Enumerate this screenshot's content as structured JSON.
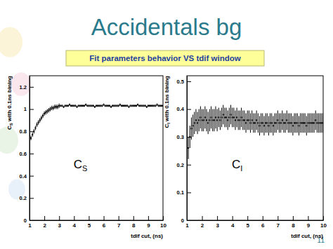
{
  "slide": {
    "title": "Accidentals bg",
    "subtitle": "Fit parameters behavior VS tdif window",
    "page_number": 11
  },
  "chart_data": [
    {
      "type": "scatter",
      "marker": "square",
      "color": "#000000",
      "x_label": "tdif cut, (ns)",
      "y_label": {
        "text": "C",
        "subscript": "S",
        "rest": " with 0.1ns bining"
      },
      "annotation": {
        "text": "C",
        "subscript": "S"
      },
      "xlim": [
        1,
        10
      ],
      "xticks": [
        1,
        2,
        3,
        4,
        5,
        6,
        7,
        8,
        9,
        10
      ],
      "ylim": [
        0,
        1.3
      ],
      "yticks": [
        0,
        0.2,
        0.4,
        0.6,
        0.8,
        1,
        1.2
      ],
      "x": [
        1,
        1.1,
        1.2,
        1.3,
        1.4,
        1.5,
        1.6,
        1.7,
        1.8,
        1.9,
        2,
        2.1,
        2.2,
        2.3,
        2.4,
        2.5,
        2.6,
        2.7,
        2.8,
        2.9,
        3,
        3.1,
        3.2,
        3.3,
        3.4,
        3.5,
        3.6,
        3.7,
        3.8,
        3.9,
        4,
        4.1,
        4.2,
        4.3,
        4.4,
        4.5,
        4.6,
        4.7,
        4.8,
        4.9,
        5,
        5.1,
        5.2,
        5.3,
        5.4,
        5.5,
        5.6,
        5.7,
        5.8,
        5.9,
        6,
        6.1,
        6.2,
        6.3,
        6.4,
        6.5,
        6.6,
        6.7,
        6.8,
        6.9,
        7,
        7.1,
        7.2,
        7.3,
        7.4,
        7.5,
        7.6,
        7.7,
        7.8,
        7.9,
        8,
        8.1,
        8.2,
        8.3,
        8.4,
        8.5,
        8.6,
        8.7,
        8.8,
        8.9,
        9,
        9.1,
        9.2,
        9.3,
        9.4,
        9.5,
        9.6,
        9.7,
        9.8,
        9.9,
        10
      ],
      "values": [
        0.7,
        0.74,
        0.77,
        0.8,
        0.83,
        0.86,
        0.88,
        0.9,
        0.92,
        0.94,
        0.96,
        0.97,
        0.98,
        0.99,
        1.0,
        1.01,
        1.01,
        1.02,
        1.02,
        1.02,
        1.03,
        1.03,
        1.03,
        1.02,
        1.03,
        1.03,
        1.03,
        1.04,
        1.03,
        1.03,
        1.03,
        1.03,
        1.02,
        1.03,
        1.03,
        1.03,
        1.03,
        1.03,
        1.04,
        1.03,
        1.03,
        1.03,
        1.03,
        1.03,
        1.02,
        1.03,
        1.03,
        1.03,
        1.03,
        1.03,
        1.04,
        1.03,
        1.03,
        1.03,
        1.03,
        1.02,
        1.03,
        1.03,
        1.03,
        1.03,
        1.03,
        1.04,
        1.03,
        1.03,
        1.03,
        1.03,
        1.03,
        1.02,
        1.03,
        1.03,
        1.03,
        1.03,
        1.03,
        1.04,
        1.03,
        1.03,
        1.03,
        1.03,
        1.03,
        1.02,
        1.03,
        1.03,
        1.03,
        1.03,
        1.03,
        1.03,
        1.04,
        1.03,
        1.03,
        1.03,
        1.03
      ],
      "errors": [
        0.02,
        0.02,
        0.02,
        0.02,
        0.02,
        0.02,
        0.02,
        0.02,
        0.02,
        0.02,
        0.02,
        0.02,
        0.02,
        0.02,
        0.02,
        0.02,
        0.02,
        0.02,
        0.02,
        0.02,
        0.02,
        0.01,
        0.01,
        0.01,
        0.01,
        0.01,
        0.01,
        0.01,
        0.01,
        0.01,
        0.01,
        0.01,
        0.01,
        0.01,
        0.01,
        0.01,
        0.01,
        0.01,
        0.01,
        0.01,
        0.01,
        0.01,
        0.01,
        0.01,
        0.01,
        0.01,
        0.01,
        0.01,
        0.01,
        0.01,
        0.01,
        0.01,
        0.01,
        0.01,
        0.01,
        0.01,
        0.01,
        0.01,
        0.01,
        0.01,
        0.01,
        0.01,
        0.01,
        0.01,
        0.01,
        0.01,
        0.01,
        0.01,
        0.01,
        0.01,
        0.01,
        0.01,
        0.01,
        0.01,
        0.01,
        0.01,
        0.01,
        0.01,
        0.01,
        0.01,
        0.01,
        0.01,
        0.01,
        0.01,
        0.01,
        0.01,
        0.01,
        0.01,
        0.01,
        0.01,
        0.01
      ]
    },
    {
      "type": "scatter",
      "marker": "square",
      "color": "#000000",
      "x_label": "tdif cut, (ns)",
      "y_label": {
        "text": "C",
        "subscript": "I",
        "rest": " with 0.1ns bining"
      },
      "annotation": {
        "text": "C",
        "subscript": "I"
      },
      "xlim": [
        1,
        10
      ],
      "xticks": [
        1,
        2,
        3,
        4,
        5,
        6,
        7,
        8,
        9,
        10
      ],
      "ylim": [
        0,
        0.52
      ],
      "yticks": [
        0,
        0.1,
        0.2,
        0.3,
        0.4,
        0.5
      ],
      "x": [
        1,
        1.1,
        1.2,
        1.3,
        1.4,
        1.5,
        1.6,
        1.7,
        1.8,
        1.9,
        2,
        2.1,
        2.2,
        2.3,
        2.4,
        2.5,
        2.6,
        2.7,
        2.8,
        2.9,
        3,
        3.1,
        3.2,
        3.3,
        3.4,
        3.5,
        3.6,
        3.7,
        3.8,
        3.9,
        4,
        4.1,
        4.2,
        4.3,
        4.4,
        4.5,
        4.6,
        4.7,
        4.8,
        4.9,
        5,
        5.1,
        5.2,
        5.3,
        5.4,
        5.5,
        5.6,
        5.7,
        5.8,
        5.9,
        6,
        6.1,
        6.2,
        6.3,
        6.4,
        6.5,
        6.6,
        6.7,
        6.8,
        6.9,
        7,
        7.1,
        7.2,
        7.3,
        7.4,
        7.5,
        7.6,
        7.7,
        7.8,
        7.9,
        8,
        8.1,
        8.2,
        8.3,
        8.4,
        8.5,
        8.6,
        8.7,
        8.8,
        8.9,
        9,
        9.1,
        9.2,
        9.3,
        9.4,
        9.5,
        9.6,
        9.7,
        9.8,
        9.9,
        10
      ],
      "values": [
        0.27,
        0.26,
        0.3,
        0.33,
        0.34,
        0.35,
        0.36,
        0.35,
        0.36,
        0.37,
        0.36,
        0.36,
        0.37,
        0.36,
        0.35,
        0.36,
        0.37,
        0.36,
        0.36,
        0.37,
        0.36,
        0.37,
        0.36,
        0.37,
        0.38,
        0.37,
        0.37,
        0.36,
        0.37,
        0.38,
        0.37,
        0.37,
        0.36,
        0.37,
        0.36,
        0.36,
        0.37,
        0.36,
        0.36,
        0.35,
        0.36,
        0.36,
        0.35,
        0.36,
        0.35,
        0.35,
        0.36,
        0.35,
        0.34,
        0.35,
        0.35,
        0.34,
        0.35,
        0.35,
        0.34,
        0.35,
        0.35,
        0.34,
        0.35,
        0.35,
        0.36,
        0.35,
        0.35,
        0.36,
        0.35,
        0.35,
        0.36,
        0.35,
        0.35,
        0.35,
        0.34,
        0.35,
        0.35,
        0.35,
        0.34,
        0.35,
        0.35,
        0.35,
        0.35,
        0.34,
        0.35,
        0.35,
        0.35,
        0.35,
        0.35,
        0.36,
        0.35,
        0.35,
        0.35,
        0.35,
        0.35
      ],
      "errors": [
        0.04,
        0.04,
        0.04,
        0.04,
        0.04,
        0.04,
        0.04,
        0.04,
        0.04,
        0.04,
        0.04,
        0.04,
        0.04,
        0.04,
        0.04,
        0.04,
        0.04,
        0.04,
        0.04,
        0.04,
        0.04,
        0.035,
        0.035,
        0.035,
        0.035,
        0.035,
        0.035,
        0.035,
        0.035,
        0.035,
        0.035,
        0.035,
        0.035,
        0.035,
        0.035,
        0.035,
        0.035,
        0.035,
        0.035,
        0.035,
        0.035,
        0.035,
        0.035,
        0.035,
        0.035,
        0.035,
        0.035,
        0.035,
        0.035,
        0.035,
        0.035,
        0.035,
        0.035,
        0.035,
        0.035,
        0.035,
        0.035,
        0.035,
        0.035,
        0.035,
        0.035,
        0.035,
        0.035,
        0.035,
        0.035,
        0.035,
        0.035,
        0.035,
        0.035,
        0.035,
        0.035,
        0.035,
        0.035,
        0.035,
        0.035,
        0.035,
        0.035,
        0.035,
        0.035,
        0.035,
        0.035,
        0.035,
        0.035,
        0.035,
        0.035,
        0.035,
        0.035,
        0.035,
        0.035,
        0.035,
        0.035
      ]
    }
  ]
}
